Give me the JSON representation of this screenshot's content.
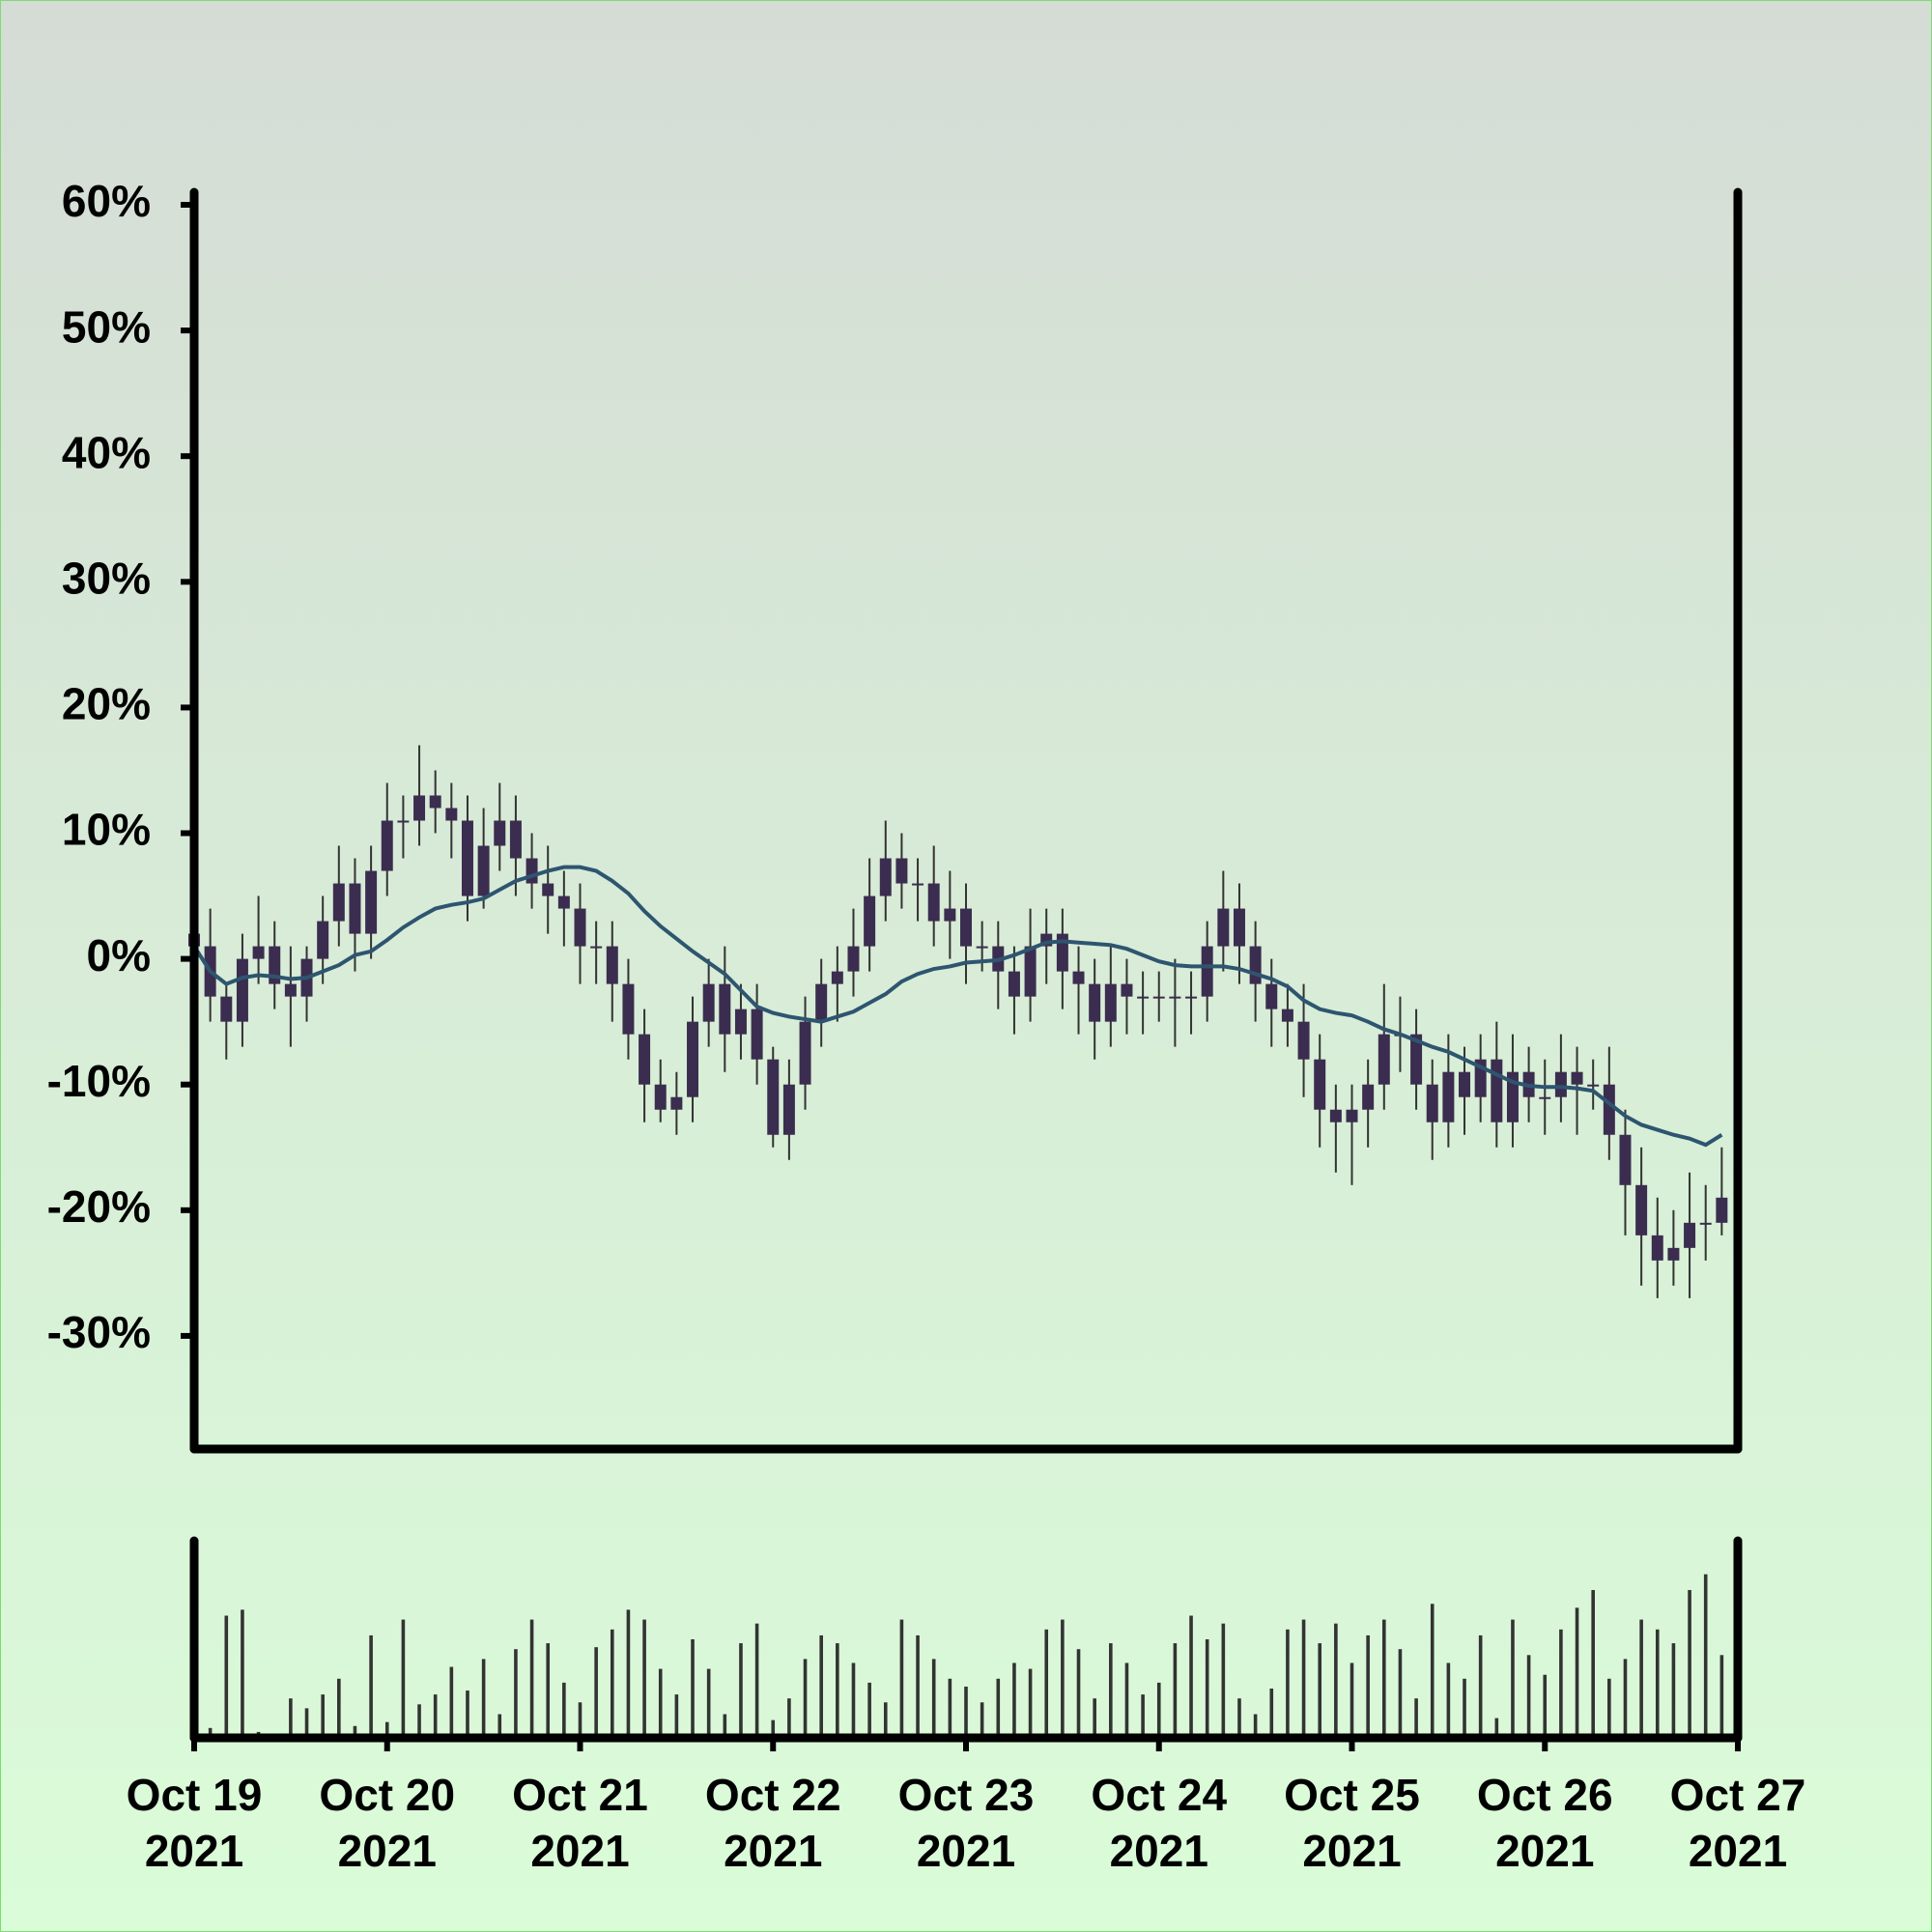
{
  "chart_data": {
    "type": "candlestick",
    "x": [
      0,
      2,
      4,
      6,
      8,
      10,
      12,
      14,
      16,
      18,
      20,
      22,
      24,
      26,
      28,
      30,
      32,
      34,
      36,
      38,
      40,
      42,
      44,
      46,
      48,
      50,
      52,
      54,
      56,
      58,
      60,
      62,
      64,
      66,
      68,
      70,
      72,
      74,
      76,
      78,
      80,
      82,
      84,
      86,
      88,
      90,
      92,
      94,
      96,
      98,
      100,
      102,
      104,
      106,
      108,
      110,
      112,
      114,
      116,
      118,
      120,
      122,
      124,
      126,
      128,
      130,
      132,
      134,
      136,
      138,
      140,
      142,
      144,
      146,
      148,
      150,
      152,
      154,
      156,
      158,
      160,
      162,
      164,
      166,
      168,
      170,
      172,
      174,
      176,
      178,
      180,
      182,
      184,
      186,
      188,
      190
    ],
    "open": [
      2,
      1,
      -3,
      -5,
      0,
      1,
      -2,
      -3,
      0,
      3,
      6,
      2,
      7,
      11,
      11,
      13,
      12,
      11,
      5,
      9,
      11,
      8,
      6,
      5,
      4,
      1,
      1,
      -2,
      -6,
      -10,
      -12,
      -11,
      -5,
      -2,
      -6,
      -4,
      -8,
      -14,
      -10,
      -5,
      -2,
      -1,
      1,
      5,
      8,
      6,
      6,
      3,
      4,
      1,
      1,
      -1,
      -3,
      1,
      2,
      -1,
      -2,
      -5,
      -2,
      -3,
      -3,
      -3,
      -3,
      -3,
      1,
      4,
      1,
      -2,
      -4,
      -5,
      -8,
      -12,
      -13,
      -12,
      -10,
      -6,
      -6,
      -10,
      -13,
      -9,
      -11,
      -8,
      -13,
      -9,
      -11,
      -11,
      -9,
      -10,
      -10,
      -14,
      -18,
      -22,
      -24,
      -23,
      -21,
      -21
    ],
    "high": [
      4,
      4,
      -2,
      2,
      5,
      3,
      1,
      1,
      5,
      9,
      8,
      9,
      14,
      13,
      17,
      15,
      14,
      13,
      12,
      14,
      13,
      10,
      9,
      7,
      6,
      3,
      3,
      0,
      -4,
      -8,
      -9,
      -3,
      0,
      1,
      -2,
      -2,
      -7,
      -8,
      -3,
      0,
      1,
      4,
      8,
      11,
      10,
      8,
      9,
      7,
      6,
      3,
      3,
      1,
      4,
      4,
      4,
      1,
      0,
      1,
      0,
      -1,
      -1,
      0,
      -1,
      3,
      7,
      6,
      3,
      0,
      -2,
      -2,
      -6,
      -10,
      -10,
      -8,
      -2,
      -3,
      -4,
      -8,
      -6,
      -7,
      -6,
      -5,
      -6,
      -7,
      -8,
      -6,
      -7,
      -8,
      -7,
      -12,
      -15,
      -19,
      -20,
      -17,
      -18,
      -15
    ],
    "low": [
      -1,
      -5,
      -8,
      -7,
      -2,
      -4,
      -7,
      -5,
      -2,
      1,
      -1,
      0,
      5,
      8,
      9,
      10,
      8,
      3,
      4,
      7,
      5,
      4,
      2,
      1,
      -2,
      -2,
      -5,
      -8,
      -13,
      -13,
      -14,
      -13,
      -7,
      -9,
      -8,
      -10,
      -15,
      -16,
      -12,
      -7,
      -5,
      -3,
      -1,
      3,
      4,
      3,
      1,
      0,
      -2,
      -1,
      -4,
      -6,
      -5,
      -2,
      -4,
      -6,
      -8,
      -7,
      -6,
      -6,
      -5,
      -7,
      -6,
      -5,
      -1,
      -2,
      -5,
      -7,
      -7,
      -11,
      -15,
      -17,
      -18,
      -15,
      -12,
      -9,
      -12,
      -16,
      -15,
      -14,
      -13,
      -15,
      -15,
      -13,
      -14,
      -13,
      -14,
      -12,
      -16,
      -22,
      -26,
      -27,
      -26,
      -27,
      -24,
      -22
    ],
    "close": [
      1,
      -3,
      -5,
      0,
      1,
      -2,
      -3,
      0,
      3,
      6,
      2,
      7,
      11,
      11,
      13,
      12,
      11,
      5,
      9,
      11,
      8,
      6,
      5,
      4,
      1,
      1,
      -2,
      -6,
      -10,
      -12,
      -11,
      -5,
      -2,
      -6,
      -4,
      -8,
      -14,
      -10,
      -5,
      -2,
      -1,
      1,
      5,
      8,
      6,
      6,
      3,
      4,
      1,
      1,
      -1,
      -3,
      1,
      2,
      -1,
      -2,
      -5,
      -2,
      -3,
      -3,
      -3,
      -3,
      -3,
      1,
      4,
      1,
      -2,
      -4,
      -5,
      -8,
      -12,
      -13,
      -12,
      -10,
      -6,
      -6,
      -10,
      -13,
      -9,
      -11,
      -8,
      -13,
      -9,
      -11,
      -11,
      -9,
      -10,
      -10,
      -14,
      -18,
      -22,
      -24,
      -23,
      -21,
      -21,
      -19
    ],
    "body_color": "#3b2d4f",
    "wick_color": "#333333",
    "moving_average": {
      "color": "#2e5570",
      "values": [
        1,
        -1,
        -2,
        -1.5,
        -1.3,
        -1.4,
        -1.6,
        -1.5,
        -1,
        -0.5,
        0.3,
        0.6,
        1.5,
        2.5,
        3.3,
        4,
        4.3,
        4.5,
        4.8,
        5.5,
        6.2,
        6.6,
        7,
        7.3,
        7.3,
        7,
        6.2,
        5.2,
        3.8,
        2.6,
        1.6,
        0.6,
        -0.3,
        -1.2,
        -2.5,
        -3.8,
        -4.3,
        -4.6,
        -4.8,
        -5,
        -4.6,
        -4.2,
        -3.5,
        -2.8,
        -1.8,
        -1.2,
        -0.8,
        -0.6,
        -0.3,
        -0.2,
        -0.1,
        0.3,
        0.8,
        1.3,
        1.4,
        1.3,
        1.2,
        1.1,
        0.8,
        0.3,
        -0.2,
        -0.5,
        -0.6,
        -0.6,
        -0.6,
        -0.8,
        -1.2,
        -1.6,
        -2.2,
        -3.3,
        -4,
        -4.3,
        -4.5,
        -5,
        -5.6,
        -6,
        -6.5,
        -7,
        -7.4,
        -8,
        -8.6,
        -9.2,
        -9.8,
        -10.1,
        -10.2,
        -10.2,
        -10.3,
        -10.5,
        -11.5,
        -12.5,
        -13.2,
        -13.6,
        -14,
        -14.3,
        -14.8,
        -14
      ]
    },
    "volume": {
      "color": "#333333",
      "ylim": [
        0,
        100
      ],
      "values": [
        12,
        5,
        62,
        65,
        3,
        1,
        20,
        15,
        22,
        30,
        6,
        52,
        8,
        60,
        17,
        22,
        36,
        24,
        40,
        12,
        45,
        60,
        48,
        28,
        18,
        46,
        55,
        65,
        60,
        35,
        22,
        50,
        35,
        12,
        48,
        58,
        9,
        20,
        40,
        52,
        48,
        38,
        28,
        18,
        60,
        52,
        40,
        30,
        26,
        18,
        30,
        38,
        35,
        55,
        60,
        45,
        20,
        48,
        38,
        22,
        28,
        48,
        62,
        50,
        58,
        20,
        12,
        25,
        55,
        60,
        48,
        58,
        38,
        52,
        60,
        45,
        20,
        68,
        38,
        30,
        52,
        10,
        60,
        42,
        32,
        55,
        66,
        75,
        30,
        40,
        60,
        55,
        48,
        75,
        83,
        42
      ]
    },
    "xlim": [
      0,
      192
    ],
    "xticks": [
      {
        "value": 0,
        "label": "Oct 19\n2021"
      },
      {
        "value": 24,
        "label": "Oct 20\n2021"
      },
      {
        "value": 48,
        "label": "Oct 21\n2021"
      },
      {
        "value": 72,
        "label": "Oct 22\n2021"
      },
      {
        "value": 96,
        "label": "Oct 23\n2021"
      },
      {
        "value": 120,
        "label": "Oct 24\n2021"
      },
      {
        "value": 144,
        "label": "Oct 25\n2021"
      },
      {
        "value": 168,
        "label": "Oct 26\n2021"
      },
      {
        "value": 192,
        "label": "Oct 27\n2021"
      }
    ],
    "ylim": [
      -39,
      61
    ],
    "yticks": [
      {
        "value": 60,
        "label": "60%"
      },
      {
        "value": 50,
        "label": "50%"
      },
      {
        "value": 40,
        "label": "40%"
      },
      {
        "value": 30,
        "label": "30%"
      },
      {
        "value": 20,
        "label": "20%"
      },
      {
        "value": 10,
        "label": "10%"
      },
      {
        "value": 0,
        "label": "0%"
      },
      {
        "value": -10,
        "label": "-10%"
      },
      {
        "value": -20,
        "label": "-20%"
      },
      {
        "value": -30,
        "label": "-30%"
      }
    ]
  }
}
